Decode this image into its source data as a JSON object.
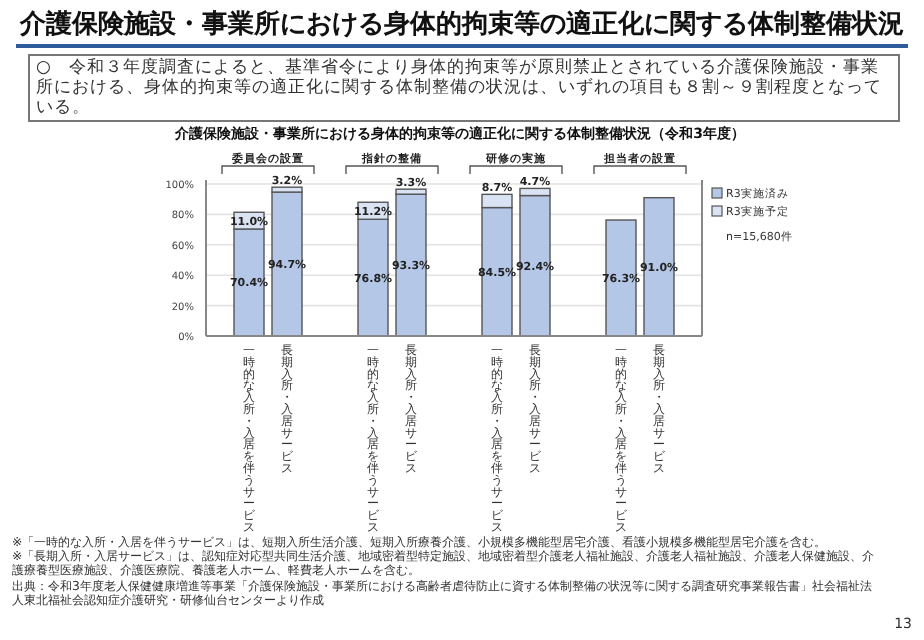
{
  "chart_data": {
    "type": "bar",
    "stacked": true,
    "title": "介護保険施設・事業所における身体的拘束等の適正化に関する体制整備状況",
    "subtitle": "介護保険施設・事業所における身体的拘束等の適正化に関する体制整備状況（令和3年度）",
    "categories": [
      "一時的な入所・入居を伴うサービス",
      "長期入所・入居サービス",
      "一時的な入所・入居を伴うサービス",
      "長期入所・入居サービス",
      "一時的な入所・入居を伴うサービス",
      "長期入所・入居サービス",
      "一時的な入所・入居を伴うサービス",
      "長期入所・入居サービス"
    ],
    "series": [
      {
        "name": "R3実施済み",
        "color": "#b4c7e7",
        "values": [
          70.4,
          94.7,
          76.8,
          93.3,
          84.5,
          92.4,
          76.3,
          91.0
        ],
        "value_labels": [
          "70.4%",
          "94.7%",
          "76.8%",
          "93.3%",
          "84.5%",
          "92.4%",
          "76.3%",
          "91.0%"
        ]
      },
      {
        "name": "R3実施予定",
        "color": "#dae3f3",
        "values": [
          11.0,
          3.2,
          11.2,
          3.3,
          8.7,
          4.7,
          null,
          null
        ],
        "value_labels": [
          "11.0%",
          "3.2%",
          "11.2%",
          "3.3%",
          "8.7%",
          "4.7%",
          null,
          null
        ]
      }
    ],
    "ylim": [
      0,
      100
    ],
    "yticks": [
      {
        "value": 0,
        "label": "0%"
      },
      {
        "value": 20,
        "label": "20%"
      },
      {
        "value": 40,
        "label": "40%"
      },
      {
        "value": 60,
        "label": "60%"
      },
      {
        "value": 80,
        "label": "80%"
      },
      {
        "value": 100,
        "label": "100%"
      }
    ],
    "grid": "y",
    "legend": "right",
    "annotations": [
      "○　令和３年度調査によると、基準省令により身体的拘束等が原則禁止とされている介護保険施設・事業所における、身体的拘束等の適正化に関する体制整備の状況は、いずれの項目も８割～９割程度となっている。",
      "委員会の設置",
      "指針の整備",
      "研修の実施",
      "担当者の設置",
      "n=15,680件",
      "※「一時的な入所・入居を伴うサービス」は、短期入所生活介護、短期入所療養介護、小規模多機能型居宅介護、看護小規模多機能型居宅介護を含む。",
      "※「長期入所・入居サービス」は、認知症対応型共同生活介護、地域密着型特定施設、地域密着型介護老人福祉施設、介護老人福祉施設、介護老人保健施設、介護療養型医療施設、介護医療院、養護老人ホーム、軽費老人ホームを含む。",
      "出典：令和3年度老人保健健康増進等事業「介護保険施設・事業所における高齢者虐待防止に資する体制整備の状況等に関する調査研究事業報告書」社会福祉法人東北福祉会認知症介護研究・研修仙台センターより作成",
      "13"
    ]
  }
}
